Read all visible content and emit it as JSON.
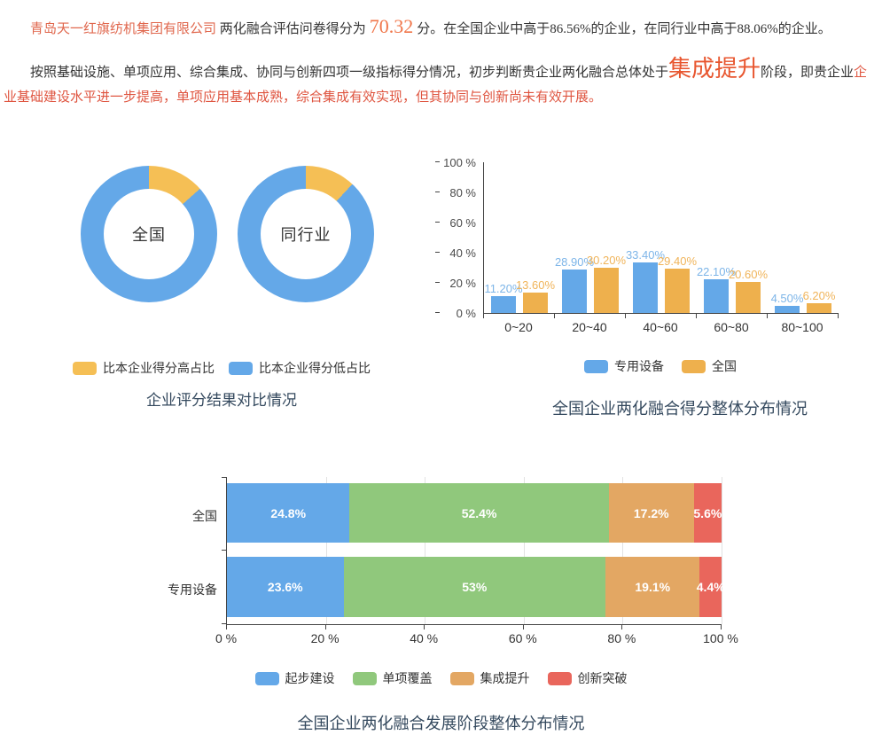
{
  "header": {
    "company": "青岛天一红旗纺机集团有限公司",
    "mid_text": " 两化融合评估问卷得分为",
    "score": "70.32",
    "tail_text": "分。在全国企业中高于86.56%的企业，在同行业中高于88.06%的企业。",
    "para2_part1": "按照基础设施、单项应用、综合集成、协同与创新四项一级指标得分情况，初步判断贵企业两化融合总体处于",
    "para2_stage": "集成提升",
    "para2_part2": "阶段，即贵企业",
    "para2_part3": "企业基础建设水平进一步提高，单项应用基本成熟，综合集成有效实现，但其协同与创新尚未有效开展。"
  },
  "colors": {
    "donut_high": "#f5bf55",
    "donut_low": "#64a8e8",
    "axis": "#444444",
    "grid": "#e2e2e2",
    "title": "#34495e",
    "red_text": "#df5540",
    "accent_orange": "#e8562f"
  },
  "chart_data": [
    {
      "type": "pie",
      "title": "企业评分结果对比情况",
      "legend_items": [
        {
          "label": "比本企业得分高占比",
          "color": "#f5bf55"
        },
        {
          "label": "比本企业得分低占比",
          "color": "#64a8e8"
        }
      ],
      "donuts": [
        {
          "label": "全国",
          "higher_pct": 13.44,
          "lower_pct": 86.56
        },
        {
          "label": "同行业",
          "higher_pct": 11.94,
          "lower_pct": 88.06
        }
      ]
    },
    {
      "type": "bar",
      "title": "全国企业两化融合得分整体分布情况",
      "categories": [
        "0~20",
        "20~40",
        "40~60",
        "60~80",
        "80~100"
      ],
      "yticks": [
        "0 %",
        "20 %",
        "40 %",
        "60 %",
        "80 %",
        "100 %"
      ],
      "ylim": [
        0,
        100
      ],
      "series": [
        {
          "name": "专用设备",
          "color": "#64a8e8",
          "label_color": "#7db5e8",
          "values": [
            11.2,
            28.9,
            33.4,
            22.1,
            4.5
          ],
          "labels": [
            "11.20%",
            "28.90%",
            "33.40%",
            "22.10%",
            "4.50%"
          ]
        },
        {
          "name": "全国",
          "color": "#eeb04d",
          "label_color": "#f0b45a",
          "values": [
            13.6,
            30.2,
            29.4,
            20.6,
            6.2
          ],
          "labels": [
            "13.60%",
            "30.20%",
            "29.40%",
            "20.60%",
            "6.20%"
          ]
        }
      ]
    },
    {
      "type": "bar-stacked-horizontal",
      "title": "全国企业两化融合发展阶段整体分布情况",
      "categories": [
        "全国",
        "专用设备"
      ],
      "xticks": [
        "0 %",
        "20 %",
        "40 %",
        "60 %",
        "80 %",
        "100 %"
      ],
      "xlim": [
        0,
        100
      ],
      "series": [
        {
          "name": "起步建设",
          "color": "#64a8e8",
          "values": [
            24.8,
            23.6
          ],
          "labels": [
            "24.8%",
            "23.6%"
          ]
        },
        {
          "name": "单项覆盖",
          "color": "#90c87c",
          "values": [
            52.4,
            53.0
          ],
          "labels": [
            "52.4%",
            "53%"
          ]
        },
        {
          "name": "集成提升",
          "color": "#e3a763",
          "values": [
            17.2,
            19.1
          ],
          "labels": [
            "17.2%",
            "19.1%"
          ]
        },
        {
          "name": "创新突破",
          "color": "#e9665c",
          "values": [
            5.6,
            4.4
          ],
          "labels": [
            "5.6%",
            "4.4%"
          ]
        }
      ]
    }
  ]
}
